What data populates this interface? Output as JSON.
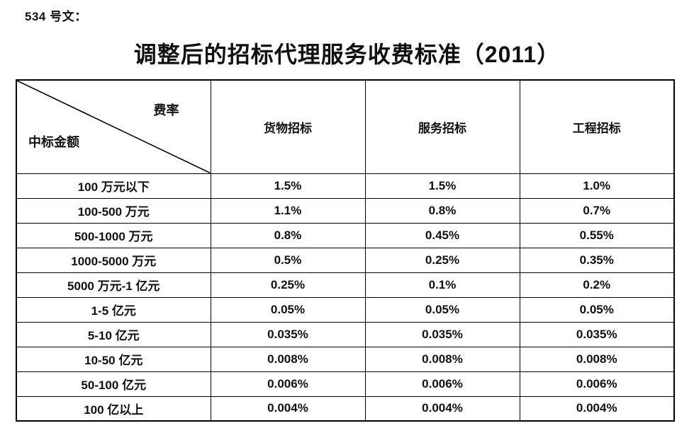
{
  "document": {
    "doc_number": "534 号文：",
    "title": "调整后的招标代理服务收费标准（2011）"
  },
  "table": {
    "corner": {
      "top_right_label": "费率",
      "bottom_left_label": "中标金额"
    },
    "columns": [
      "货物招标",
      "服务招标",
      "工程招标"
    ],
    "rows": [
      {
        "amount": "100 万元以下",
        "rates": [
          "1.5%",
          "1.5%",
          "1.0%"
        ]
      },
      {
        "amount": "100-500 万元",
        "rates": [
          "1.1%",
          "0.8%",
          "0.7%"
        ]
      },
      {
        "amount": "500-1000 万元",
        "rates": [
          "0.8%",
          "0.45%",
          "0.55%"
        ]
      },
      {
        "amount": "1000-5000 万元",
        "rates": [
          "0.5%",
          "0.25%",
          "0.35%"
        ]
      },
      {
        "amount": "5000 万元-1 亿元",
        "rates": [
          "0.25%",
          "0.1%",
          "0.2%"
        ]
      },
      {
        "amount": "1-5 亿元",
        "rates": [
          "0.05%",
          "0.05%",
          "0.05%"
        ]
      },
      {
        "amount": "5-10 亿元",
        "rates": [
          "0.035%",
          "0.035%",
          "0.035%"
        ]
      },
      {
        "amount": "10-50 亿元",
        "rates": [
          "0.008%",
          "0.008%",
          "0.008%"
        ]
      },
      {
        "amount": "50-100 亿元",
        "rates": [
          "0.006%",
          "0.006%",
          "0.006%"
        ]
      },
      {
        "amount": "100 亿以上",
        "rates": [
          "0.004%",
          "0.004%",
          "0.004%"
        ]
      }
    ]
  }
}
